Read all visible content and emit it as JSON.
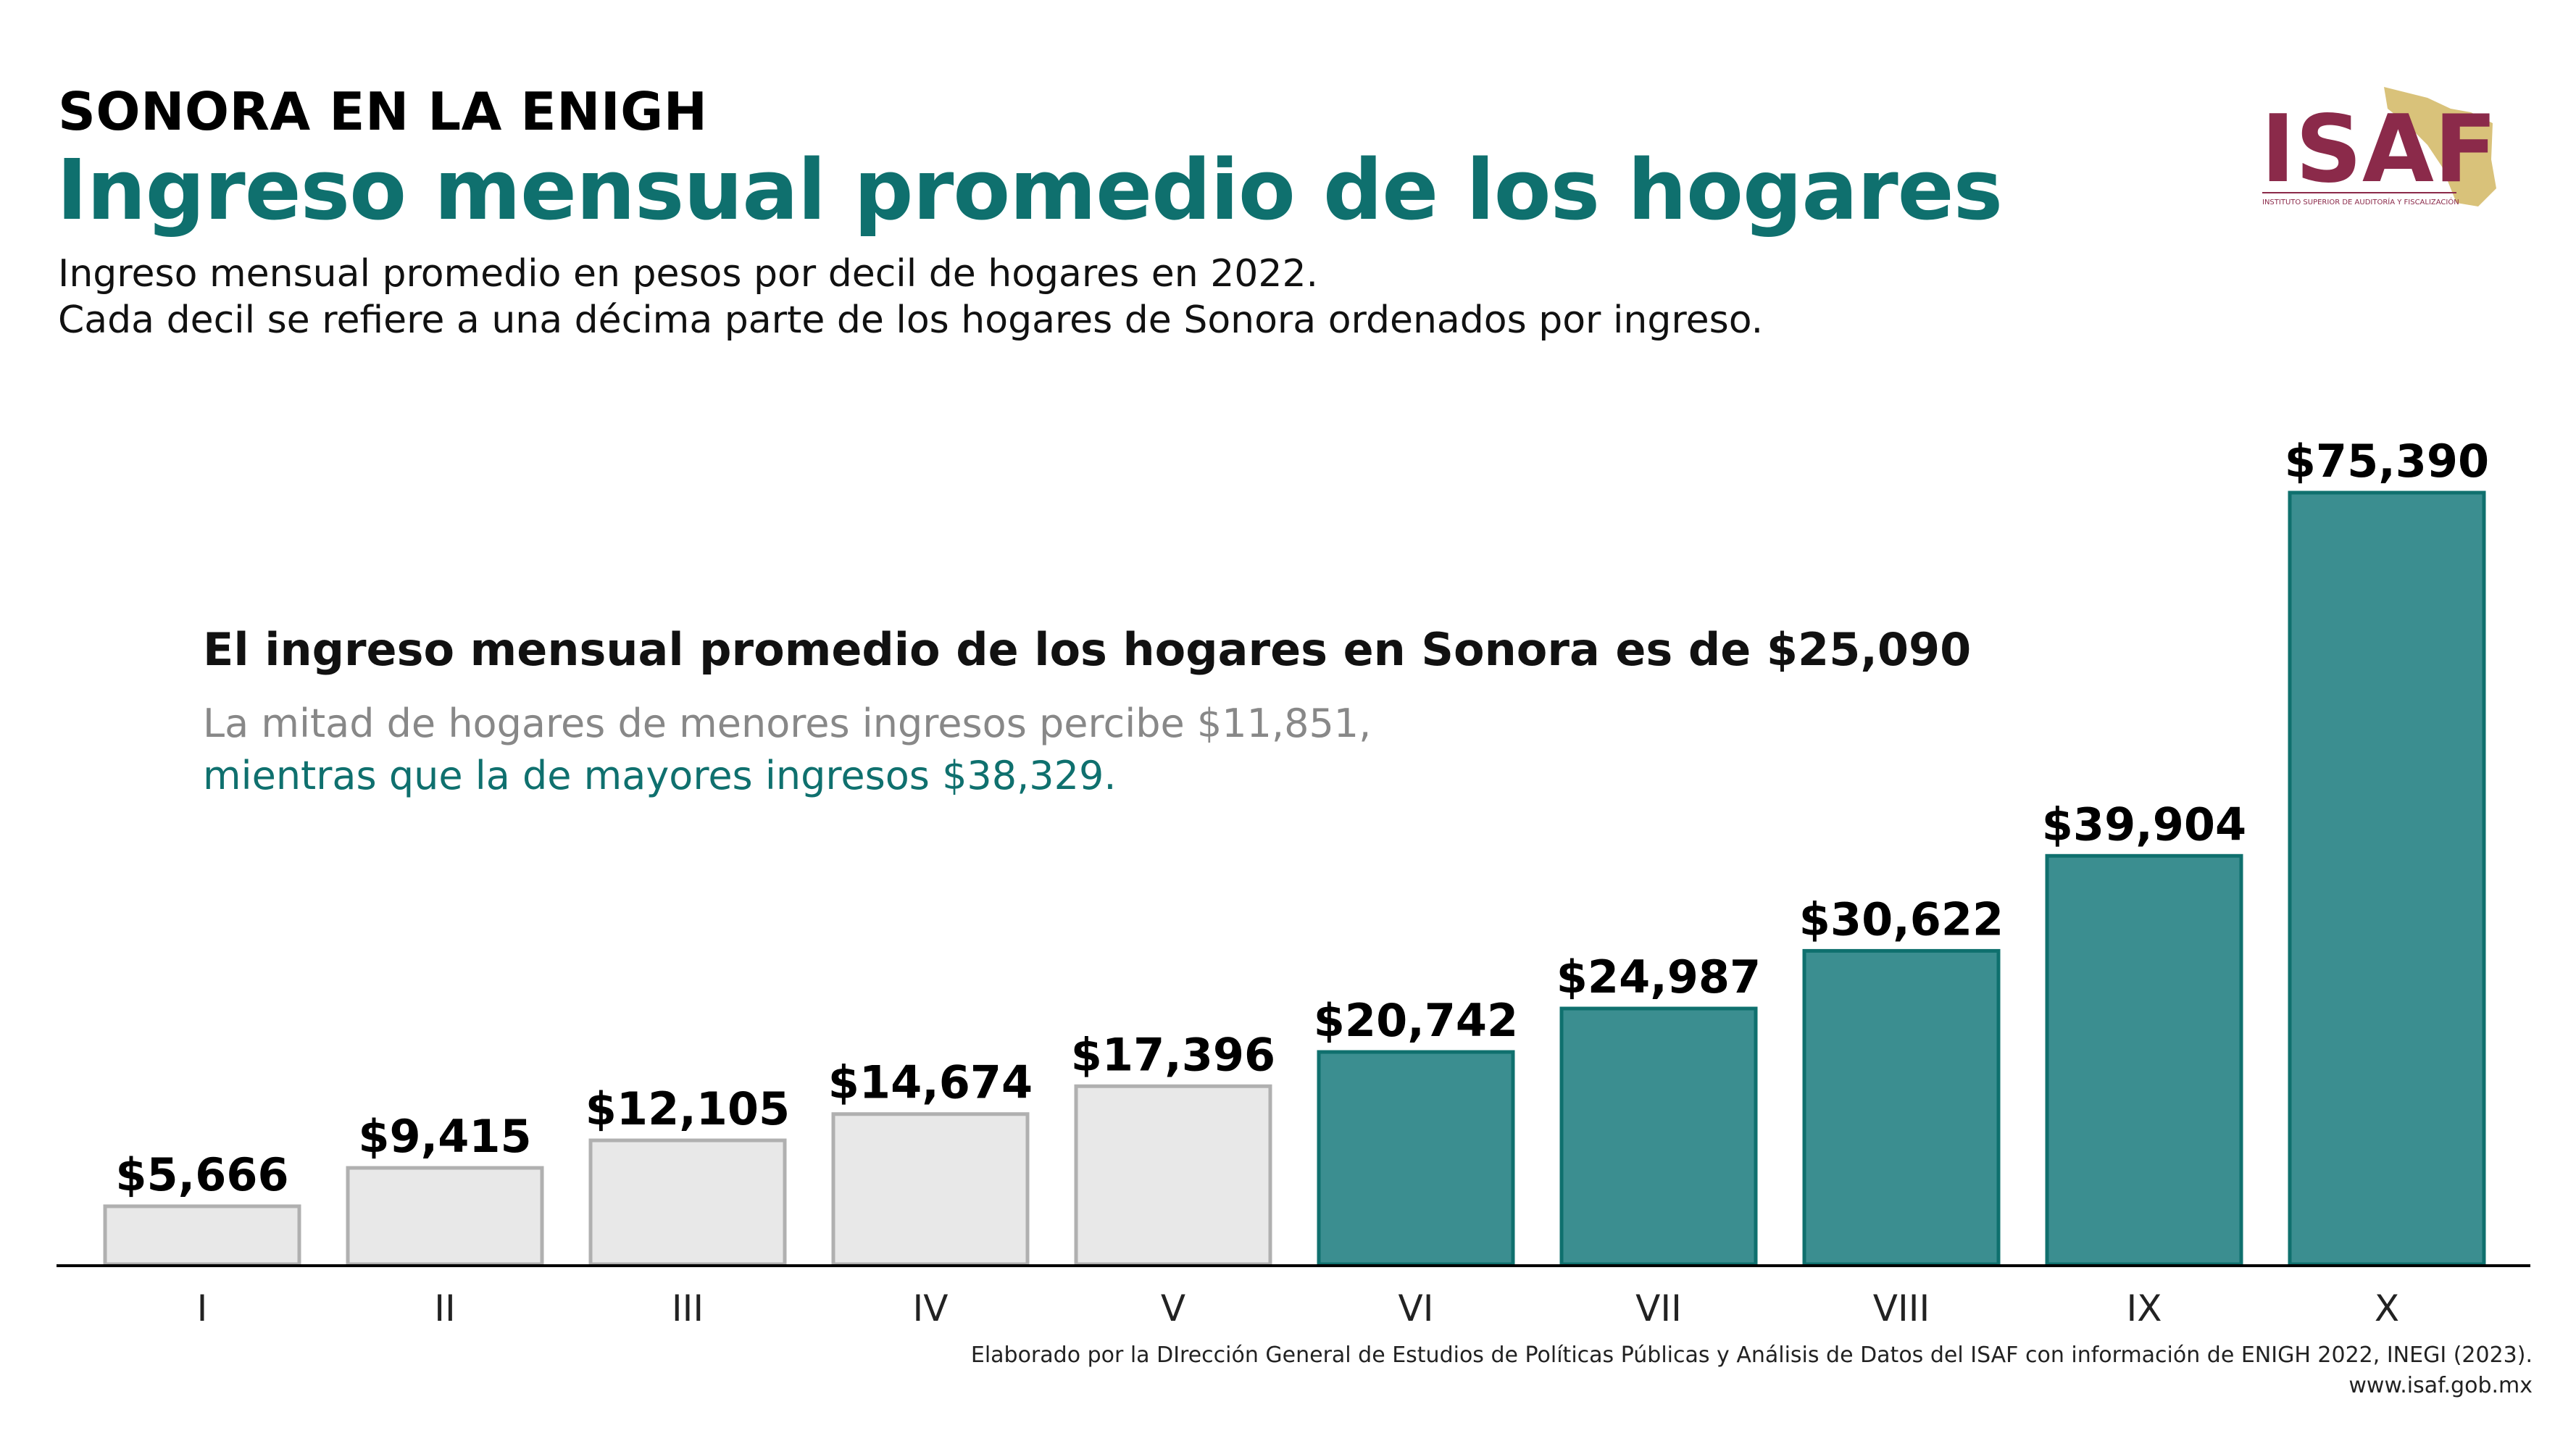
{
  "header": {
    "kicker": "SONORA EN LA ENIGH",
    "title": "Ingreso mensual promedio de los hogares",
    "subtitle_line1": "Ingreso mensual promedio en pesos por decil de hogares en 2022.",
    "subtitle_line2": "Cada decil se refiere a una décima parte de los hogares de Sonora ordenados por ingreso."
  },
  "highlight": {
    "main": "El ingreso mensual promedio de los hogares en Sonora es de $25,090",
    "gray_line": "La mitad de hogares de menores ingresos percibe $11,851,",
    "teal_line": "mientras que la de mayores ingresos $38,329."
  },
  "logo": {
    "text": "ISAF",
    "tagline": "INSTITUTO SUPERIOR DE AUDITORÍA Y FISCALIZACIÓN"
  },
  "footer": {
    "credit": "Elaborado por la DIrección General de Estudios de Políticas Públicas y Análisis de Datos del ISAF con información de ENIGH 2022, INEGI (2023).",
    "url": "www.isaf.gob.mx"
  },
  "colors": {
    "teal": "#3b8e90",
    "teal_stroke": "#0f706e",
    "gray": "#e8e8e8",
    "gray_stroke": "#b0b0b0",
    "logo_maroon": "#8b2a4a",
    "logo_gold": "#d9c27a"
  },
  "chart_data": {
    "type": "bar",
    "categories": [
      "I",
      "II",
      "III",
      "IV",
      "V",
      "VI",
      "VII",
      "VIII",
      "IX",
      "X"
    ],
    "values": [
      5666,
      9415,
      12105,
      14674,
      17396,
      20742,
      24987,
      30622,
      39904,
      75390
    ],
    "value_labels": [
      "$5,666",
      "$9,415",
      "$12,105",
      "$14,674",
      "$17,396",
      "$20,742",
      "$24,987",
      "$30,622",
      "$39,904",
      "$75,390"
    ],
    "highlight_from_index": 5,
    "title": "",
    "xlabel": "",
    "ylabel": "",
    "ylim": [
      0,
      75390
    ],
    "grid": false,
    "legend": "none"
  }
}
